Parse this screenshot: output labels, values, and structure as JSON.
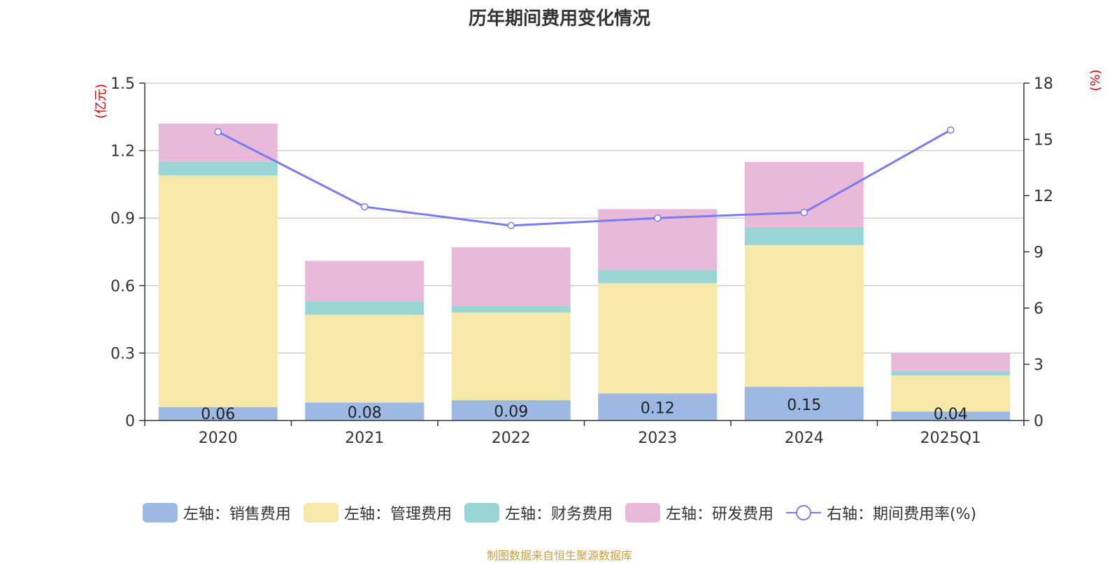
{
  "chart_data": {
    "type": "bar",
    "title": "历年期间费用变化情况",
    "categories": [
      "2020",
      "2021",
      "2022",
      "2023",
      "2024",
      "2025Q1"
    ],
    "series": [
      {
        "name": "左轴：销售费用",
        "axis": "left",
        "color": "#9db8e2",
        "values": [
          0.06,
          0.08,
          0.09,
          0.12,
          0.15,
          0.04
        ]
      },
      {
        "name": "左轴：管理费用",
        "axis": "left",
        "color": "#f7e7a8",
        "values": [
          1.03,
          0.39,
          0.39,
          0.49,
          0.63,
          0.16
        ]
      },
      {
        "name": "左轴：财务费用",
        "axis": "left",
        "color": "#99d5d5",
        "values": [
          0.06,
          0.06,
          0.03,
          0.06,
          0.08,
          0.02
        ]
      },
      {
        "name": "左轴：研发费用",
        "axis": "left",
        "color": "#e8b9d8",
        "values": [
          0.17,
          0.18,
          0.26,
          0.27,
          0.29,
          0.08
        ]
      },
      {
        "name": "右轴：期间费用率(%)",
        "axis": "right",
        "type": "line",
        "color": "#7b7bf0",
        "values": [
          15.4,
          11.4,
          10.4,
          10.8,
          11.1,
          15.5
        ]
      }
    ],
    "data_labels": [
      "0.06",
      "0.08",
      "0.09",
      "0.12",
      "0.15",
      "0.04"
    ],
    "left_axis": {
      "label": "(亿元)",
      "ylim": [
        0,
        1.5
      ],
      "ticks": [
        "0",
        "0.3",
        "0.6",
        "0.9",
        "1.2",
        "1.5"
      ]
    },
    "right_axis": {
      "label": "(%)",
      "ylim": [
        0,
        18
      ],
      "ticks": [
        "0",
        "3",
        "6",
        "9",
        "12",
        "15",
        "18"
      ]
    },
    "legend": [
      "左轴：销售费用",
      "左轴：管理费用",
      "左轴：财务费用",
      "左轴：研发费用",
      "右轴：期间费用率(%)"
    ],
    "legend_position": "bottom",
    "grid": true
  },
  "source_text": "制图数据来自恒生聚源数据库",
  "axis_color": "#333333",
  "grid_color": "#cccccc",
  "axis_label_color": "#e00000"
}
